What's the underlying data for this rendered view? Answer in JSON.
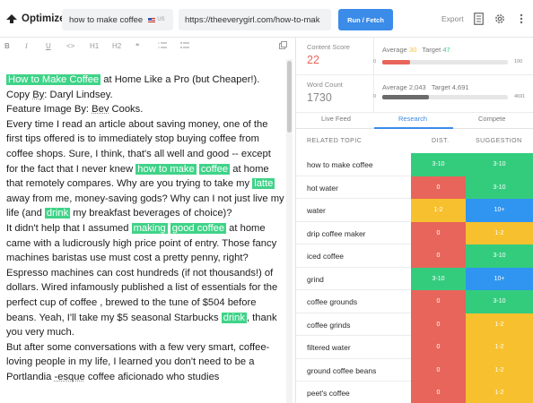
{
  "header": {
    "brand": "Optimize",
    "keyword": "how to make coffee",
    "country": "US",
    "url": "https://theeverygirl.com/how-to-mak",
    "run_label": "Run / Fetch",
    "export_label": "Export"
  },
  "toolbar": {
    "bold": "B",
    "italic": "I",
    "underline": "U",
    "code": "<>",
    "h1": "H1",
    "h2": "H2",
    "quote": "❝"
  },
  "editor": {
    "p1a_hl": "How to Make Coffee",
    "p1b": " at Home Like a Pro (but Cheaper!).",
    "p2a": "Copy ",
    "p2b": "By",
    "p2c": ": Daryl Lindsey.",
    "p3a": "Feature Image By: ",
    "p3b": "Bev",
    "p3c": " Cooks.",
    "p4a": "Every time I read an article about saving money, one of the first tips offered is to immediately stop buying coffee from coffee shops. Sure, I think, that's all well and good -- except for the fact that I never knew ",
    "p4b_hl": "how to make",
    "p4c_hl": "coffee",
    "p4d": " at home that remotely compares. Why are you trying to take my ",
    "p4e_hl": "latte",
    "p4f": " away from me, money-saving gods? Why can I not just live my life (and ",
    "p4g_hl": "drink",
    "p4h": " my breakfast beverages of choice)?",
    "p5a": "It didn't help that I assumed ",
    "p5b_hl": "making",
    "p5c_hl": "good coffee",
    "p5d": " at home came with a ludicrously high price point of entry. Those fancy machines baristas use must cost a pretty penny, right? Espresso machines can cost hundreds (if not thousands!) of dollars. Wired infamously published a list of essentials for the perfect cup of coffee , brewed to the tune of $504 before beans. Yeah, I'll take my $5 seasonal Starbucks ",
    "p5e_hl": "drink",
    "p5f": ", thank you very much.",
    "p6a": "But after some conversations with a few very smart, coffee-loving people in my life, I learned you don't need to be a Portlandia ",
    "p6b": "-esque",
    "p6c": " coffee aficionado who studies"
  },
  "stats": {
    "content_score_label": "Content Score",
    "content_score": "22",
    "cs_average_label": "Average",
    "cs_average": "30",
    "cs_target_label": "Target",
    "cs_target": "47",
    "cs_min": "0",
    "cs_max": "100",
    "cs_fraction": 0.22,
    "word_count_label": "Word Count",
    "word_count": "1730",
    "wc_average_label": "Average",
    "wc_average": "2,043",
    "wc_target_label": "Target",
    "wc_target": "4,691",
    "wc_min": "0",
    "wc_max": "4691",
    "wc_fraction": 0.369
  },
  "tabs": [
    "Live Feed",
    "Research",
    "Compete"
  ],
  "active_tab": "Research",
  "table": {
    "headers": [
      "RELATED TOPIC",
      "DIST.",
      "SUGGESTION"
    ],
    "rows": [
      {
        "topic": "how to make coffee",
        "dist": "3-10",
        "dist_color": "green",
        "sug": "3-10",
        "sug_color": "green"
      },
      {
        "topic": "hot water",
        "dist": "0",
        "dist_color": "red",
        "sug": "3-10",
        "sug_color": "green"
      },
      {
        "topic": "water",
        "dist": "1-2",
        "dist_color": "yellow",
        "sug": "10+",
        "sug_color": "blue"
      },
      {
        "topic": "drip coffee maker",
        "dist": "0",
        "dist_color": "red",
        "sug": "1-2",
        "sug_color": "yellow"
      },
      {
        "topic": "iced coffee",
        "dist": "0",
        "dist_color": "red",
        "sug": "3-10",
        "sug_color": "green"
      },
      {
        "topic": "grind",
        "dist": "3-10",
        "dist_color": "green",
        "sug": "10+",
        "sug_color": "blue"
      },
      {
        "topic": "coffee grounds",
        "dist": "0",
        "dist_color": "red",
        "sug": "3-10",
        "sug_color": "green"
      },
      {
        "topic": "coffee grinds",
        "dist": "0",
        "dist_color": "red",
        "sug": "1-2",
        "sug_color": "yellow"
      },
      {
        "topic": "filtered water",
        "dist": "0",
        "dist_color": "red",
        "sug": "1-2",
        "sug_color": "yellow"
      },
      {
        "topic": "ground coffee beans",
        "dist": "0",
        "dist_color": "red",
        "sug": "1-2",
        "sug_color": "yellow"
      },
      {
        "topic": "peet's coffee",
        "dist": "0",
        "dist_color": "red",
        "sug": "1-2",
        "sug_color": "yellow"
      }
    ]
  },
  "colors": {
    "accent": "#3b8be8",
    "highlight": "#3fd388",
    "green": "#33cc7d",
    "red": "#e8655b",
    "yellow": "#f7c02e",
    "blue": "#2f95f0",
    "score_red": "#e8655b",
    "target_green": "#33cc7d",
    "average_yellow": "#f7c02e"
  }
}
